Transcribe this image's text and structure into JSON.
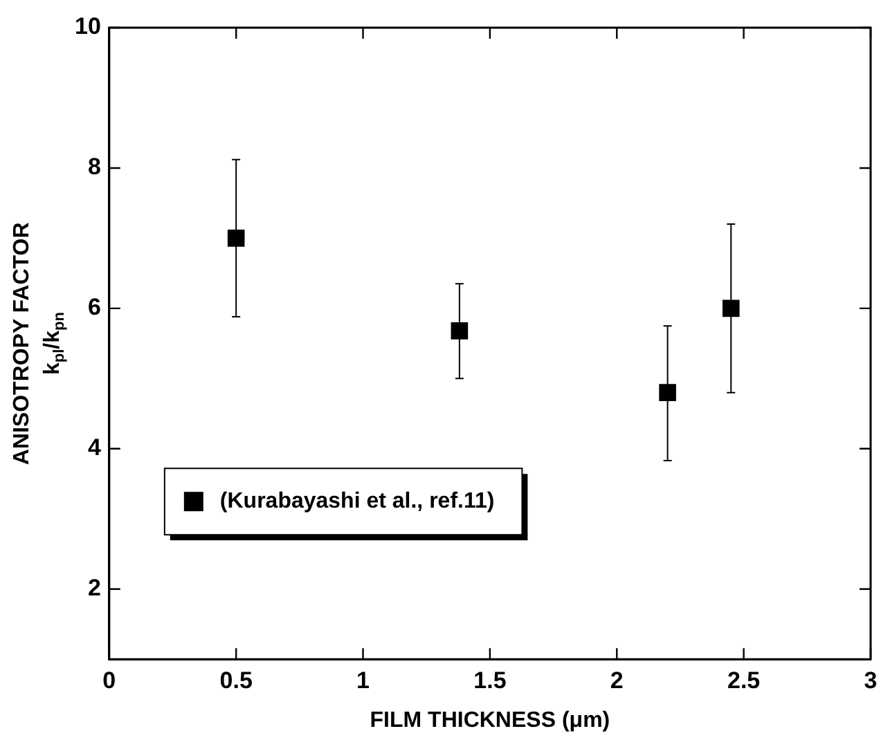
{
  "chart_data": {
    "type": "scatter",
    "xlabel": "FILM THICKNESS (μm)",
    "ylabel": "ANISOTROPY FACTOR\nk$_{pl}$/k$_{pn}$",
    "x": [
      0.5,
      1.38,
      2.2,
      2.45
    ],
    "series": [
      {
        "name": "(Kurabayashi et al., ref.11)",
        "color": "#000000",
        "values": [
          7.0,
          5.68,
          4.8,
          6.0
        ],
        "errors": [
          [
            5.88,
            8.12
          ],
          [
            5.0,
            6.35
          ],
          [
            3.83,
            5.75
          ],
          [
            4.8,
            7.2
          ]
        ]
      }
    ],
    "xlim": [
      0,
      3
    ],
    "xticks": [
      0,
      0.5,
      1,
      1.5,
      2,
      2.5,
      3
    ],
    "ylim": [
      1,
      10
    ],
    "yticks": [
      2,
      4,
      6,
      8,
      10
    ],
    "grid": false,
    "legend": "bottom left",
    "marker": "square"
  }
}
